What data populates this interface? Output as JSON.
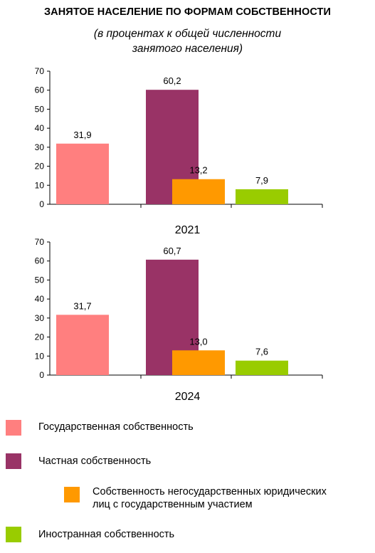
{
  "title": "ЗАНЯТОЕ НАСЕЛЕНИЕ ПО ФОРМАМ СОБСТВЕННОСТИ",
  "subtitle_line1": "(в процентах к общей численности",
  "subtitle_line2": "занятого населения)",
  "chart_data": [
    {
      "type": "bar",
      "title": "2021",
      "categories": [
        "Государственная собственность",
        "Частная собственность",
        "Собственность негосударственных юридических лиц с государственным участием",
        "Иностранная собственность"
      ],
      "values": [
        31.9,
        60.2,
        13.2,
        7.9
      ],
      "value_labels": [
        "31,9",
        "60,2",
        "13,2",
        "7,9"
      ],
      "ylim": [
        0,
        70
      ],
      "yticks": [
        0,
        10,
        20,
        30,
        40,
        50,
        60,
        70
      ],
      "grid": false,
      "legend": "bottom"
    },
    {
      "type": "bar",
      "title": "2024",
      "categories": [
        "Государственная собственность",
        "Частная собственность",
        "Собственность негосударственных юридических лиц с государственным участием",
        "Иностранная собственность"
      ],
      "values": [
        31.7,
        60.7,
        13.0,
        7.6
      ],
      "value_labels": [
        "31,7",
        "60,7",
        "13,0",
        "7,6"
      ],
      "ylim": [
        0,
        70
      ],
      "yticks": [
        0,
        10,
        20,
        30,
        40,
        50,
        60,
        70
      ],
      "grid": false,
      "legend": "bottom"
    }
  ],
  "colors": [
    "#ff7f7f",
    "#993366",
    "#ff9900",
    "#99cc00"
  ],
  "legend": [
    {
      "label_line1": "Государственная собственность",
      "label_line2": "",
      "color": "#ff7f7f"
    },
    {
      "label_line1": "Частная собственность",
      "label_line2": "",
      "color": "#993366"
    },
    {
      "label_line1": "Собственность негосударственных юридических",
      "label_line2": "лиц с государственным участием",
      "color": "#ff9900"
    },
    {
      "label_line1": "Иностранная собственность",
      "label_line2": "",
      "color": "#99cc00"
    }
  ]
}
